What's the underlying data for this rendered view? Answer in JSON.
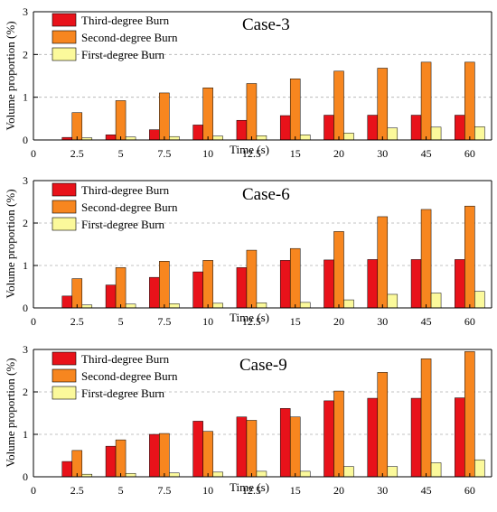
{
  "chart_data": [
    {
      "type": "bar",
      "title": "Case-3",
      "xlabel": "Time (s)",
      "ylabel": "Volume proportion (%)",
      "x_origin_label": "0",
      "categories": [
        "2.5",
        "5",
        "7.5",
        "10",
        "12.5",
        "15",
        "20",
        "30",
        "45",
        "60"
      ],
      "ylim": [
        0,
        3
      ],
      "yticks": [
        "0",
        "1",
        "2",
        "3"
      ],
      "grid": "horizontal-dashed",
      "legend": "top-left",
      "series": [
        {
          "name": "Third-degree Burn",
          "color": "#e8121a",
          "values": [
            0.06,
            0.12,
            0.24,
            0.35,
            0.46,
            0.57,
            0.58,
            0.58,
            0.58,
            0.58
          ]
        },
        {
          "name": "Second-degree Burn",
          "color": "#f7861f",
          "values": [
            0.64,
            0.92,
            1.1,
            1.22,
            1.32,
            1.43,
            1.61,
            1.68,
            1.82,
            1.82
          ]
        },
        {
          "name": "First-degree Burn",
          "color": "#fbf99b",
          "values": [
            0.05,
            0.07,
            0.08,
            0.09,
            0.1,
            0.12,
            0.16,
            0.28,
            0.3,
            0.31
          ]
        }
      ]
    },
    {
      "type": "bar",
      "title": "Case-6",
      "xlabel": "Time (s)",
      "ylabel": "Volume proportion (%)",
      "x_origin_label": "0",
      "categories": [
        "2.5",
        "5",
        "7.5",
        "10",
        "12.5",
        "15",
        "20",
        "30",
        "45",
        "60"
      ],
      "ylim": [
        0,
        3
      ],
      "yticks": [
        "0",
        "1",
        "2",
        "3"
      ],
      "grid": "horizontal-dashed",
      "legend": "top-left",
      "series": [
        {
          "name": "Third-degree Burn",
          "color": "#e8121a",
          "values": [
            0.28,
            0.54,
            0.72,
            0.85,
            0.95,
            1.12,
            1.13,
            1.14,
            1.14,
            1.14
          ]
        },
        {
          "name": "Second-degree Burn",
          "color": "#f7861f",
          "values": [
            0.69,
            0.95,
            1.1,
            1.12,
            1.36,
            1.4,
            1.8,
            2.15,
            2.32,
            2.4
          ]
        },
        {
          "name": "First-degree Burn",
          "color": "#fbf99b",
          "values": [
            0.07,
            0.09,
            0.1,
            0.11,
            0.12,
            0.13,
            0.19,
            0.32,
            0.35,
            0.39
          ]
        }
      ]
    },
    {
      "type": "bar",
      "title": "Case-9",
      "xlabel": "Time (s)",
      "ylabel": "Volume proportion (%)",
      "x_origin_label": "0",
      "categories": [
        "2.5",
        "5",
        "7.5",
        "10",
        "12.5",
        "15",
        "20",
        "30",
        "45",
        "60"
      ],
      "ylim": [
        0,
        3
      ],
      "yticks": [
        "0",
        "1",
        "2",
        "3"
      ],
      "grid": "horizontal-dashed",
      "legend": "top-left",
      "series": [
        {
          "name": "Third-degree Burn",
          "color": "#e8121a",
          "values": [
            0.36,
            0.72,
            1.0,
            1.31,
            1.41,
            1.61,
            1.79,
            1.85,
            1.85,
            1.86
          ]
        },
        {
          "name": "Second-degree Burn",
          "color": "#f7861f",
          "values": [
            0.62,
            0.87,
            1.02,
            1.07,
            1.33,
            1.41,
            2.02,
            2.46,
            2.78,
            2.95
          ]
        },
        {
          "name": "First-degree Burn",
          "color": "#fbf99b",
          "values": [
            0.06,
            0.08,
            0.09,
            0.11,
            0.13,
            0.13,
            0.24,
            0.24,
            0.33,
            0.4
          ]
        }
      ]
    }
  ]
}
